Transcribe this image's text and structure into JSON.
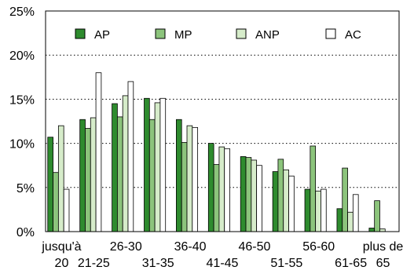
{
  "chart_data": {
    "type": "bar",
    "categories": [
      "jusqu'à 20",
      "21-25",
      "26-30",
      "31-35",
      "36-40",
      "41-45",
      "46-50",
      "51-55",
      "56-60",
      "61-65",
      "plus de 65"
    ],
    "category_label_lines": [
      [
        "jusqu'à",
        "20"
      ],
      [
        "21-25"
      ],
      [
        "26-30"
      ],
      [
        "31-35"
      ],
      [
        "36-40"
      ],
      [
        "41-45"
      ],
      [
        "46-50"
      ],
      [
        "51-55"
      ],
      [
        "56-60"
      ],
      [
        "61-65"
      ],
      [
        "plus de",
        "65"
      ]
    ],
    "series": [
      {
        "name": "AP",
        "color": "#2e8b2e",
        "values": [
          10.7,
          12.7,
          14.5,
          15.1,
          12.7,
          10.0,
          8.5,
          6.8,
          4.8,
          2.6,
          0.4
        ]
      },
      {
        "name": "MP",
        "color": "#8cc47c",
        "values": [
          6.7,
          11.7,
          13.0,
          12.7,
          10.1,
          7.6,
          8.4,
          8.2,
          9.7,
          7.2,
          3.5
        ]
      },
      {
        "name": "ANP",
        "color": "#d6ecca",
        "values": [
          12.0,
          12.9,
          15.4,
          14.6,
          12.0,
          9.6,
          8.1,
          7.0,
          4.6,
          2.2,
          0.3
        ]
      },
      {
        "name": "AC",
        "color": "#ffffff",
        "values": [
          4.8,
          18.0,
          17.0,
          15.1,
          11.8,
          9.4,
          7.5,
          6.3,
          4.8,
          4.2,
          0.0
        ]
      }
    ],
    "yticks": [
      "0%",
      "5%",
      "10%",
      "15%",
      "20%",
      "25%"
    ],
    "ylim": [
      0,
      25
    ],
    "title": "",
    "xlabel": "",
    "ylabel": "",
    "grid": "horizontal dotted",
    "legend_position": "top"
  }
}
